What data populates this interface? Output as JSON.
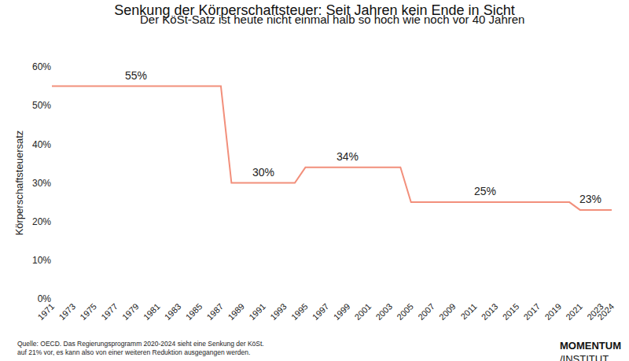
{
  "chart_data": {
    "type": "line",
    "title": "Senkung der Körperschaftsteuer: Seit Jahren kein Ende in Sicht",
    "subtitle": "Der KöSt-Satz ist heute nicht einmal halb so hoch wie noch vor 40 Jahren",
    "y_label": "Körperschaftsteuersatz",
    "x": [
      1971,
      1972,
      1973,
      1974,
      1975,
      1976,
      1977,
      1978,
      1979,
      1980,
      1981,
      1982,
      1983,
      1984,
      1985,
      1986,
      1987,
      1988,
      1989,
      1990,
      1991,
      1992,
      1993,
      1994,
      1995,
      1996,
      1997,
      1998,
      1999,
      2000,
      2001,
      2002,
      2003,
      2004,
      2005,
      2006,
      2007,
      2008,
      2009,
      2010,
      2011,
      2012,
      2013,
      2014,
      2015,
      2016,
      2017,
      2018,
      2019,
      2020,
      2021,
      2022,
      2023,
      2024
    ],
    "values": [
      55,
      55,
      55,
      55,
      55,
      55,
      55,
      55,
      55,
      55,
      55,
      55,
      55,
      55,
      55,
      55,
      55,
      30,
      30,
      30,
      30,
      30,
      30,
      30,
      34,
      34,
      34,
      34,
      34,
      34,
      34,
      34,
      34,
      34,
      25,
      25,
      25,
      25,
      25,
      25,
      25,
      25,
      25,
      25,
      25,
      25,
      25,
      25,
      25,
      25,
      23,
      23,
      23,
      23
    ],
    "color": "#f28f7b",
    "xlim": [
      1971,
      2024
    ],
    "xticks": [
      1971,
      1973,
      1975,
      1977,
      1979,
      1981,
      1983,
      1985,
      1987,
      1989,
      1991,
      1993,
      1995,
      1997,
      1999,
      2001,
      2003,
      2005,
      2007,
      2009,
      2011,
      2013,
      2015,
      2017,
      2019,
      2021,
      2023,
      2024
    ],
    "ylim": [
      0,
      60
    ],
    "yticks": [
      {
        "value": 0,
        "label": "0%"
      },
      {
        "value": 10,
        "label": "10%"
      },
      {
        "value": 20,
        "label": "20%"
      },
      {
        "value": 30,
        "label": "30%"
      },
      {
        "value": 40,
        "label": "40%"
      },
      {
        "value": 50,
        "label": "50%"
      },
      {
        "value": 60,
        "label": "60%"
      }
    ],
    "grid": false,
    "annotations": [
      {
        "x": 1979,
        "y": 55,
        "text": "55%"
      },
      {
        "x": 1991,
        "y": 30,
        "text": "30%"
      },
      {
        "x": 1999,
        "y": 34,
        "text": "34%"
      },
      {
        "x": 2012,
        "y": 25,
        "text": "25%"
      },
      {
        "x": 2022,
        "y": 23,
        "text": "23%"
      }
    ],
    "source": [
      "Quelle: OECD. Das Regierungsprogramm 2020-2024 sieht eine Senkung der KöSt.",
      "auf 21% vor, es kann also von einer weiteren Reduktion ausgegangen werden."
    ],
    "logo": [
      "MOMENTUM",
      "/INSTITUT"
    ]
  }
}
